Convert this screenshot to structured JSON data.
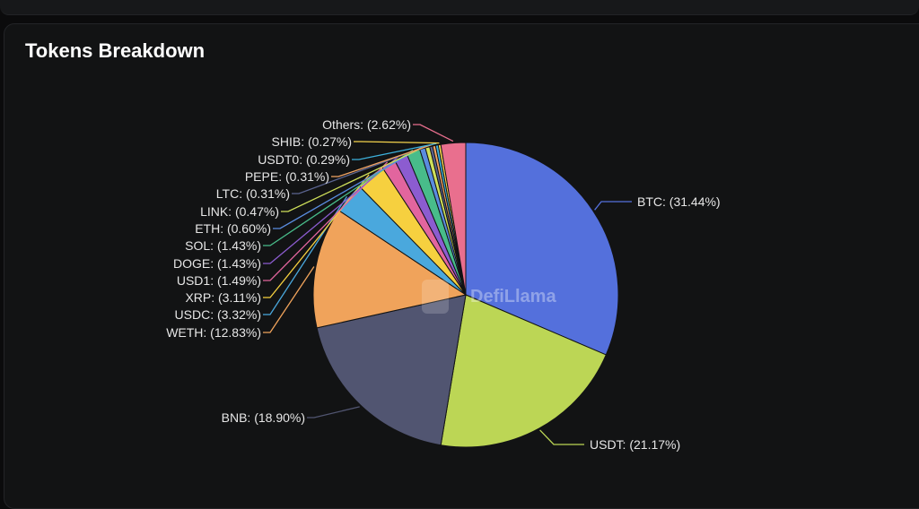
{
  "card": {
    "title": "Tokens Breakdown"
  },
  "watermark": {
    "text": "DefiLlama"
  },
  "chart_data": {
    "type": "pie",
    "title": "Tokens Breakdown",
    "slices": [
      {
        "label": "BTC",
        "value": 31.44,
        "color": "#5470dc",
        "text": "BTC: (31.44%)"
      },
      {
        "label": "USDT",
        "value": 21.17,
        "color": "#bcd655",
        "text": "USDT: (21.17%)"
      },
      {
        "label": "BNB",
        "value": 18.9,
        "color": "#515571",
        "text": "BNB: (18.90%)"
      },
      {
        "label": "WETH",
        "value": 12.83,
        "color": "#f0a35b",
        "text": "WETH: (12.83%)"
      },
      {
        "label": "USDC",
        "value": 3.32,
        "color": "#4aa8dd",
        "text": "USDC: (3.32%)"
      },
      {
        "label": "XRP",
        "value": 3.11,
        "color": "#f6d03f",
        "text": "XRP: (3.11%)"
      },
      {
        "label": "USD1",
        "value": 1.49,
        "color": "#e2659e",
        "text": "USD1: (1.49%)"
      },
      {
        "label": "DOGE",
        "value": 1.43,
        "color": "#8c5cd0",
        "text": "DOGE: (1.43%)"
      },
      {
        "label": "SOL",
        "value": 1.43,
        "color": "#48bc8a",
        "text": "SOL: (1.43%)"
      },
      {
        "label": "ETH",
        "value": 0.6,
        "color": "#5a8cdf",
        "text": "ETH: (0.60%)"
      },
      {
        "label": "LINK",
        "value": 0.47,
        "color": "#cfe05a",
        "text": "LINK: (0.47%)"
      },
      {
        "label": "LTC",
        "value": 0.31,
        "color": "#5b6490",
        "text": "LTC: (0.31%)"
      },
      {
        "label": "PEPE",
        "value": 0.31,
        "color": "#f2a463",
        "text": "PEPE: (0.31%)"
      },
      {
        "label": "USDT0",
        "value": 0.29,
        "color": "#3db1dc",
        "text": "USDT0: (0.29%)"
      },
      {
        "label": "SHIB",
        "value": 0.27,
        "color": "#f4d34c",
        "text": "SHIB: (0.27%)"
      },
      {
        "label": "Others",
        "value": 2.62,
        "color": "#e96f8e",
        "text": "Others: (2.62%)"
      }
    ]
  }
}
